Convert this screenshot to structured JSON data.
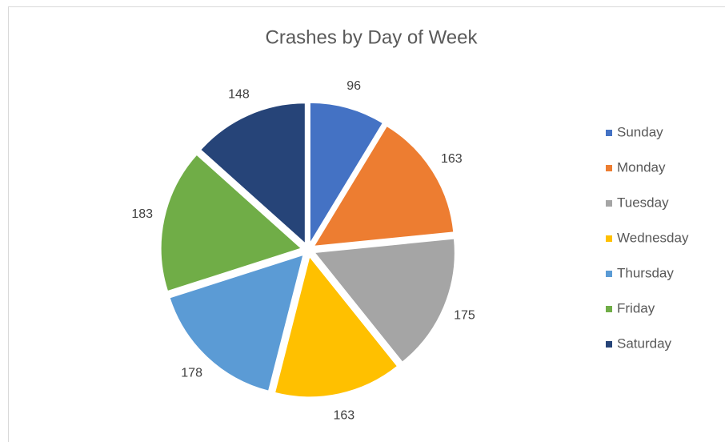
{
  "chart_data": {
    "type": "pie",
    "title": "Crashes by Day of Week",
    "categories": [
      "Sunday",
      "Monday",
      "Tuesday",
      "Wednesday",
      "Thursday",
      "Friday",
      "Saturday"
    ],
    "values": [
      96,
      163,
      175,
      163,
      178,
      183,
      148
    ],
    "colors": [
      "#4472c4",
      "#ed7d31",
      "#a5a5a5",
      "#ffc000",
      "#5b9bd5",
      "#70ad47",
      "#264478"
    ],
    "legend": "right"
  }
}
